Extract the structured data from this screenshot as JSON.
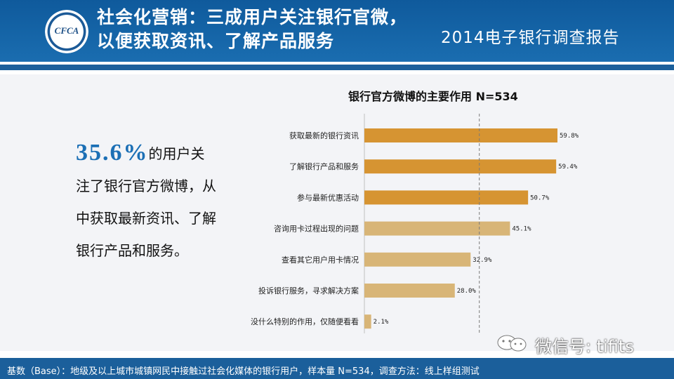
{
  "header": {
    "title_line1": "社会化营销：三成用户关注银行官微，",
    "title_line2": "以便获取资讯、了解产品服务",
    "report_name": "2014电子银行调查报告",
    "logo_text": "CFCA",
    "background": "#1a6db0"
  },
  "lead": {
    "highlight": "35.6%",
    "text_1": "的用户关",
    "text_2": "注了银行官方微博，从",
    "text_3": "中获取最新资讯、了解",
    "text_4": "银行产品和服务。"
  },
  "chart_data": {
    "type": "bar",
    "orientation": "horizontal",
    "title": "银行官方微博的主要作用  N=534",
    "categories": [
      "获取最新的银行资讯",
      "了解银行产品和服务",
      "参与最新优惠活动",
      "咨询用卡过程出现的问题",
      "查看其它用户用卡情况",
      "投诉银行服务，寻求解决方案",
      "没什么特别的作用，仅随便看看"
    ],
    "values": [
      59.8,
      59.4,
      50.7,
      45.1,
      32.9,
      28.0,
      2.1
    ],
    "data_labels": [
      "59.8%",
      "59.4%",
      "50.7%",
      "45.1%",
      "32.9%",
      "28.0%",
      "2.1%"
    ],
    "colors": [
      "#d69432",
      "#d69432",
      "#d69432",
      "#d8b577",
      "#d8b577",
      "#d8b577",
      "#d8b577"
    ],
    "reference_line": 35.6,
    "xlim": [
      0,
      65
    ],
    "grid": false
  },
  "footer": {
    "note": "基数（Base）：地级及以上城市城镇网民中接触过社会化媒体的银行用户，样本量 N=534，调查方法：线上样组测试"
  },
  "watermark": {
    "text": "微信号: tifits",
    "icon": "wechat-icon"
  }
}
